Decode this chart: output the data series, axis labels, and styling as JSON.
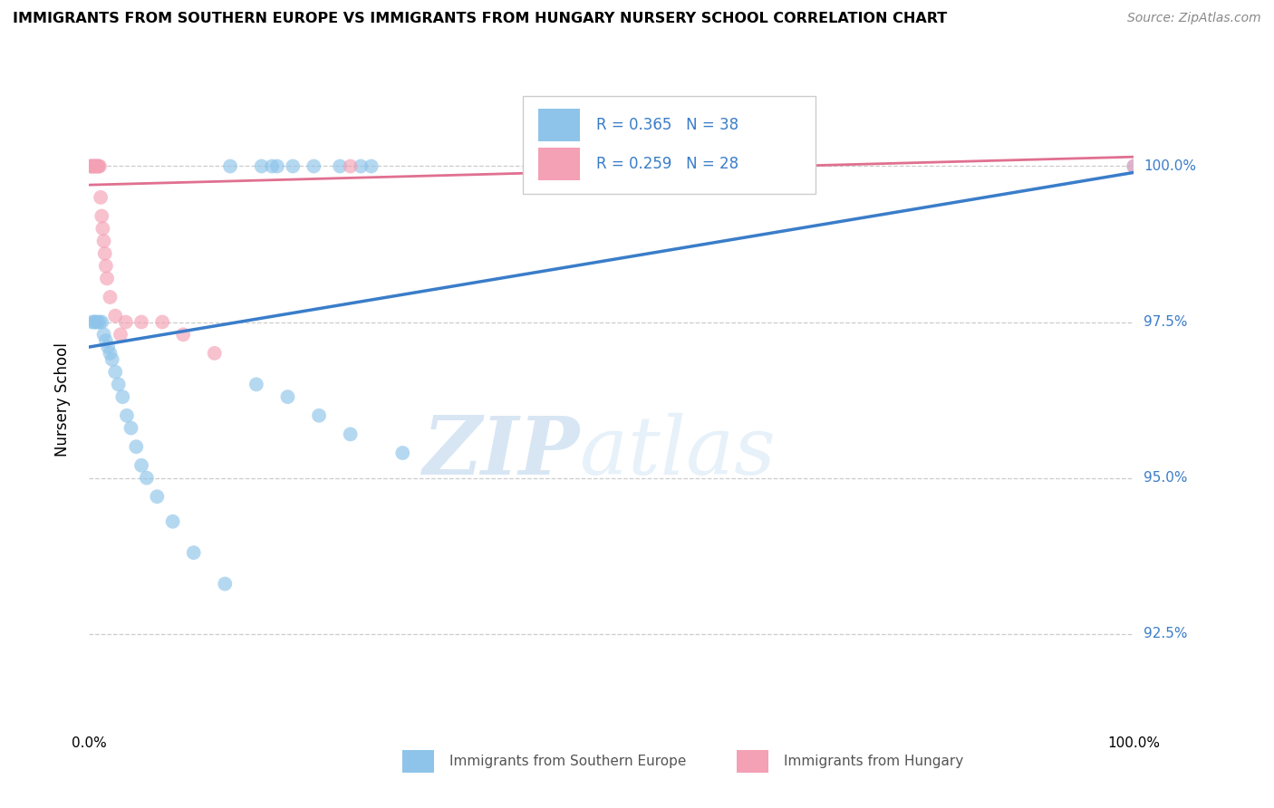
{
  "title": "IMMIGRANTS FROM SOUTHERN EUROPE VS IMMIGRANTS FROM HUNGARY NURSERY SCHOOL CORRELATION CHART",
  "source": "Source: ZipAtlas.com",
  "ylabel": "Nursery School",
  "xlim": [
    0,
    100
  ],
  "ylim": [
    91.0,
    101.5
  ],
  "ytick_vals": [
    92.5,
    95.0,
    97.5,
    100.0
  ],
  "ytick_labels": [
    "92.5%",
    "95.0%",
    "97.5%",
    "100.0%"
  ],
  "xtick_vals": [
    0,
    25,
    50,
    75,
    100
  ],
  "xtick_labels": [
    "0.0%",
    "",
    "",
    "",
    "100.0%"
  ],
  "watermark_zip": "ZIP",
  "watermark_atlas": "atlas",
  "blue_color": "#8EC4EA",
  "pink_color": "#F4A0B5",
  "blue_line_color": "#3A7DC9",
  "pink_line_color": "#E07090",
  "legend_blue_text": "R = 0.365   N = 38",
  "legend_pink_text": "R = 0.259   N = 28",
  "legend_R_blue": "R = 0.365",
  "legend_N_blue": "N = 38",
  "legend_R_pink": "R = 0.259",
  "legend_N_pink": "N = 28",
  "blue_x": [
    0.3,
    0.5,
    0.6,
    0.8,
    1.0,
    1.2,
    1.4,
    1.6,
    1.8,
    2.0,
    2.2,
    2.5,
    2.8,
    3.2,
    3.6,
    4.0,
    4.5,
    5.0,
    5.5,
    6.5,
    8.0,
    10.0,
    13.0,
    16.0,
    19.0,
    22.0,
    25.0,
    30.0,
    13.5,
    16.5,
    17.5,
    19.5,
    21.5,
    24.0,
    26.0,
    27.0,
    18.0,
    100.0
  ],
  "blue_y": [
    97.5,
    97.5,
    97.5,
    97.5,
    97.5,
    97.5,
    97.3,
    97.2,
    97.1,
    97.0,
    96.9,
    96.7,
    96.5,
    96.3,
    96.0,
    95.8,
    95.5,
    95.2,
    95.0,
    94.7,
    94.3,
    93.8,
    93.3,
    96.5,
    96.3,
    96.0,
    95.7,
    95.4,
    100.0,
    100.0,
    100.0,
    100.0,
    100.0,
    100.0,
    100.0,
    100.0,
    100.0,
    100.0
  ],
  "pink_x": [
    0.1,
    0.2,
    0.3,
    0.4,
    0.5,
    0.6,
    0.7,
    0.8,
    0.9,
    1.0,
    1.1,
    1.2,
    1.3,
    1.4,
    1.5,
    1.6,
    1.7,
    2.0,
    2.5,
    3.0,
    3.5,
    5.0,
    7.0,
    9.0,
    12.0,
    25.0,
    55.0,
    100.0
  ],
  "pink_y": [
    100.0,
    100.0,
    100.0,
    100.0,
    100.0,
    100.0,
    100.0,
    100.0,
    100.0,
    100.0,
    99.5,
    99.2,
    99.0,
    98.8,
    98.6,
    98.4,
    98.2,
    97.9,
    97.6,
    97.3,
    97.5,
    97.5,
    97.5,
    97.3,
    97.0,
    100.0,
    100.0,
    100.0
  ],
  "blue_trend_x": [
    0,
    100
  ],
  "blue_trend_y": [
    97.1,
    99.9
  ],
  "pink_trend_x": [
    0,
    100
  ],
  "pink_trend_y": [
    99.7,
    100.15
  ]
}
